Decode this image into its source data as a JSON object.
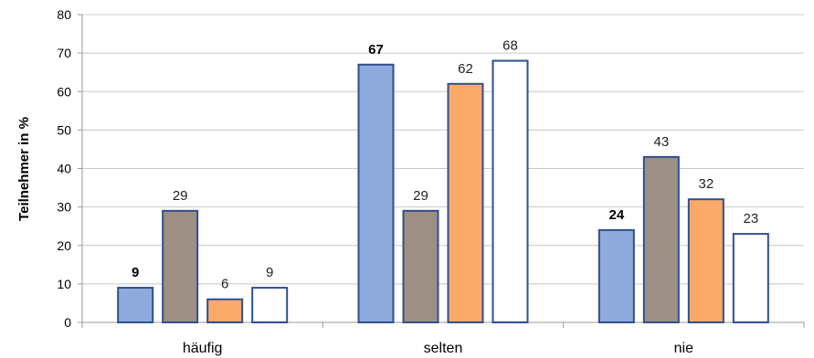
{
  "chart_data": {
    "type": "bar",
    "title": "",
    "xlabel": "",
    "ylabel": "Teilnehmer  in %",
    "ylim": [
      0,
      80
    ],
    "yticks": [
      0,
      10,
      20,
      30,
      40,
      50,
      60,
      70,
      80
    ],
    "grid": true,
    "legend": "none",
    "categories": [
      "häufig",
      "selten",
      "nie"
    ],
    "series": [
      {
        "color": "#8faadc",
        "stroke": "#2f4f8f",
        "bold_labels": true,
        "values": [
          9,
          67,
          24
        ]
      },
      {
        "color": "#9e8f84",
        "stroke": "#2f4f8f",
        "bold_labels": false,
        "values": [
          29,
          29,
          43
        ]
      },
      {
        "color": "#fbaa6a",
        "stroke": "#2f4f8f",
        "bold_labels": false,
        "values": [
          6,
          62,
          32
        ]
      },
      {
        "color": "#ffffff",
        "stroke": "#2f4f8f",
        "bold_labels": false,
        "values": [
          9,
          68,
          23
        ]
      }
    ]
  },
  "colors": {
    "grid": "#c8c8c8",
    "axis": "#999999"
  }
}
